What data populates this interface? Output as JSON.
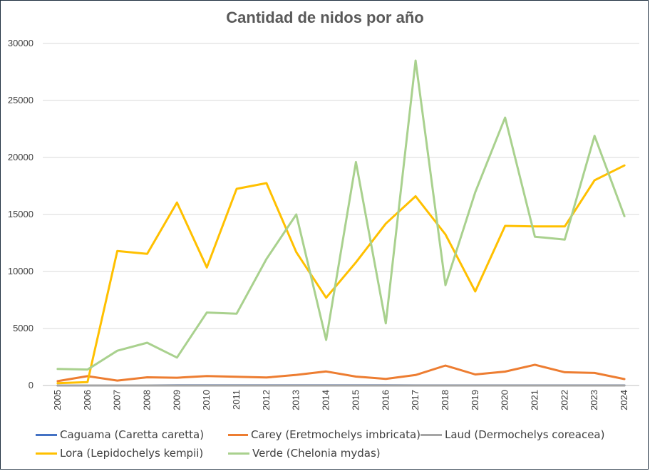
{
  "chart_data": {
    "type": "line",
    "title": "Cantidad de nidos por año",
    "xlabel": "",
    "ylabel": "",
    "x": [
      "2005",
      "2006",
      "2007",
      "2008",
      "2009",
      "2010",
      "2011",
      "2012",
      "2013",
      "2014",
      "2015",
      "2016",
      "2017",
      "2018",
      "2019",
      "2020",
      "2021",
      "2022",
      "2023",
      "2024"
    ],
    "ylim": [
      0,
      30000
    ],
    "yticks": [
      0,
      5000,
      10000,
      15000,
      20000,
      25000,
      30000
    ],
    "grid": "horizontal",
    "legend_position": "bottom",
    "series": [
      {
        "name": "Caguama (Caretta caretta)",
        "color": "#4472c4",
        "values": [
          0,
          0,
          0,
          0,
          10,
          15,
          15,
          15,
          15,
          15,
          10,
          10,
          5,
          5,
          5,
          5,
          5,
          5,
          5,
          5
        ]
      },
      {
        "name": "Carey (Eretmochelys imbricata)",
        "color": "#ed7d31",
        "values": [
          380,
          820,
          430,
          720,
          680,
          830,
          760,
          700,
          930,
          1230,
          780,
          580,
          920,
          1750,
          970,
          1220,
          1820,
          1160,
          1100,
          560
        ]
      },
      {
        "name": "Laud (Dermochelys coreacea)",
        "color": "#a5a5a5",
        "values": [
          0,
          0,
          0,
          0,
          0,
          0,
          0,
          0,
          0,
          0,
          0,
          0,
          0,
          0,
          0,
          0,
          0,
          0,
          0,
          0
        ]
      },
      {
        "name": "Lora (Lepidochelys kempii)",
        "color": "#ffc000",
        "values": [
          200,
          300,
          11800,
          11550,
          16050,
          10350,
          17250,
          17750,
          11700,
          7700,
          10800,
          14200,
          16600,
          13250,
          8250,
          14000,
          13950,
          13950,
          18000,
          19300
        ]
      },
      {
        "name": "Verde (Chelonia mydas)",
        "color": "#a9d18e",
        "values": [
          1450,
          1400,
          3050,
          3750,
          2450,
          6400,
          6300,
          11100,
          15000,
          4000,
          19600,
          5450,
          28500,
          8800,
          16950,
          23500,
          13050,
          12800,
          21900,
          14850
        ]
      }
    ]
  }
}
